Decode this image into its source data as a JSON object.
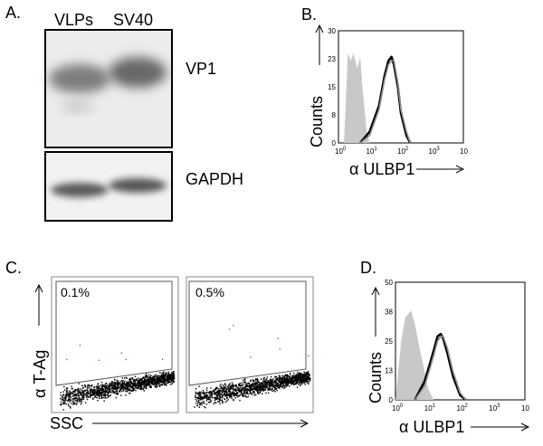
{
  "panelA": {
    "label": "A.",
    "lanes": [
      "VLPs",
      "SV40"
    ],
    "blots": [
      {
        "label": "VP1"
      },
      {
        "label": "GAPDH"
      }
    ]
  },
  "panelB": {
    "label": "B.",
    "ylabel": "Counts",
    "xlabel": "α ULBP1",
    "yticks": [
      "30",
      "23",
      "15",
      "8",
      "0"
    ],
    "xticks": [
      {
        "base": "10",
        "exp": "0"
      },
      {
        "base": "10",
        "exp": "1"
      },
      {
        "base": "10",
        "exp": "2"
      },
      {
        "base": "10",
        "exp": "3"
      },
      {
        "base": "10",
        "exp": ""
      }
    ]
  },
  "panelC": {
    "label": "C.",
    "ylabel": "α T-Ag",
    "xlabel": "SSC",
    "gates": [
      {
        "percent": "0.1%"
      },
      {
        "percent": "0.5%"
      }
    ]
  },
  "panelD": {
    "label": "D.",
    "ylabel": "Counts",
    "xlabel": "α ULBP1",
    "yticks": [
      "50",
      "38",
      "25",
      "13",
      "0"
    ],
    "xticks": [
      {
        "base": "10",
        "exp": "0"
      },
      {
        "base": "10",
        "exp": "1"
      },
      {
        "base": "10",
        "exp": "2"
      },
      {
        "base": "10",
        "exp": "3"
      },
      {
        "base": "10",
        "exp": ""
      }
    ]
  },
  "chart_data": [
    {
      "type": "area",
      "panel": "B",
      "xscale": "log",
      "xlim": [
        1,
        10000
      ],
      "ylim": [
        0,
        30
      ],
      "series": [
        {
          "color": "#c8c8c8",
          "style": "filled",
          "x": [
            1.5,
            2,
            2.5,
            3,
            4,
            5,
            6,
            7,
            8,
            10
          ],
          "y": [
            0,
            24,
            22,
            24,
            20,
            23,
            14,
            8,
            3,
            0
          ]
        },
        {
          "color": "#000000",
          "style": "line",
          "x": [
            5,
            10,
            20,
            30,
            40,
            50,
            60,
            80,
            100,
            150,
            200
          ],
          "y": [
            0,
            3,
            10,
            18,
            22,
            23,
            21,
            15,
            8,
            2,
            0
          ]
        },
        {
          "color": "#909090",
          "style": "line",
          "x": [
            5,
            10,
            20,
            30,
            40,
            50,
            60,
            80,
            100,
            150,
            200
          ],
          "y": [
            0,
            2,
            9,
            17,
            21,
            22,
            22,
            16,
            9,
            3,
            0
          ]
        }
      ]
    },
    {
      "type": "area",
      "panel": "D",
      "xscale": "log",
      "xlim": [
        1,
        10000
      ],
      "ylim": [
        0,
        50
      ],
      "series": [
        {
          "color": "#c8c8c8",
          "style": "filled",
          "x": [
            1,
            1.5,
            2,
            3,
            4,
            5,
            6,
            8,
            10,
            15
          ],
          "y": [
            0,
            25,
            35,
            38,
            32,
            25,
            20,
            12,
            5,
            0
          ]
        },
        {
          "color": "#000000",
          "style": "line",
          "x": [
            4,
            8,
            12,
            16,
            20,
            25,
            30,
            40,
            60,
            100,
            150
          ],
          "y": [
            0,
            8,
            16,
            22,
            27,
            28,
            26,
            20,
            10,
            2,
            0
          ]
        },
        {
          "color": "#909090",
          "style": "line",
          "x": [
            4,
            8,
            12,
            16,
            20,
            25,
            30,
            40,
            60,
            100,
            150
          ],
          "y": [
            0,
            6,
            14,
            20,
            25,
            27,
            27,
            22,
            12,
            3,
            0
          ]
        }
      ]
    }
  ]
}
